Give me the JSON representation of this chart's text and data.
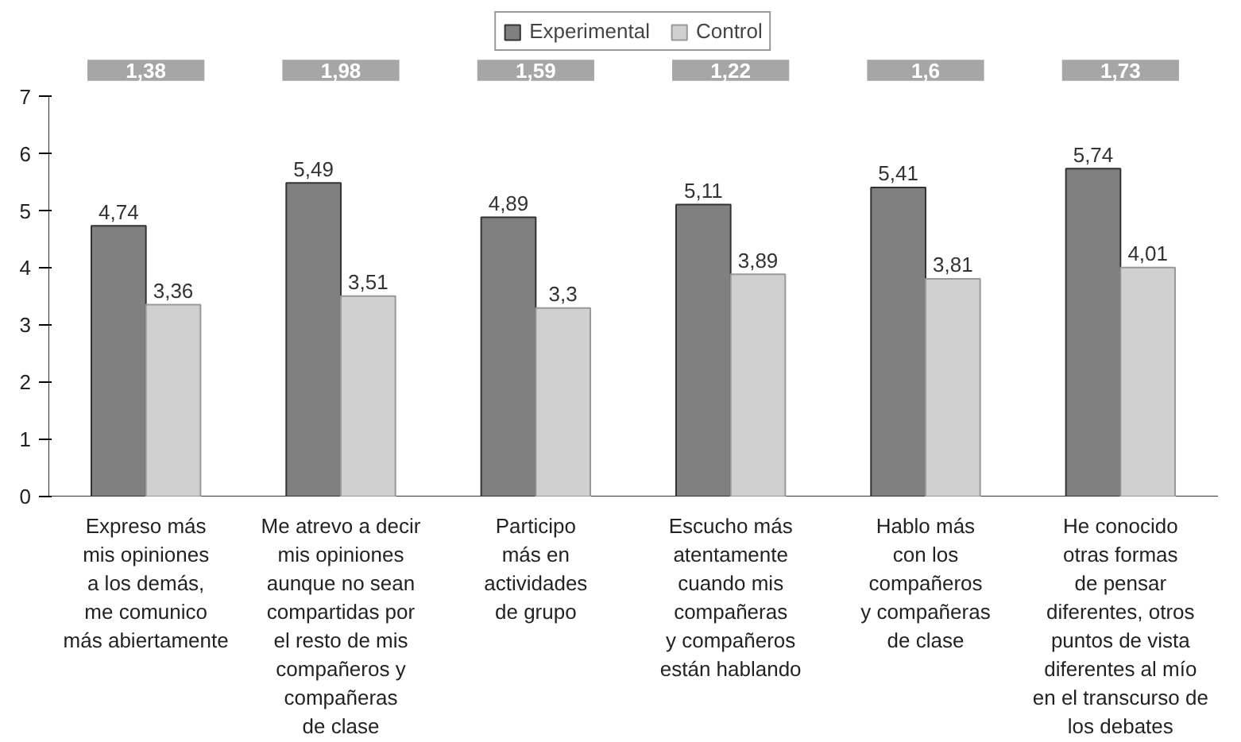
{
  "chart_data": {
    "type": "bar",
    "categories": [
      "Expreso más\nmis opiniones\na los demás,\nme comunico\nmás abiertamente",
      "Me atrevo a decir\nmis opiniones\naunque no sean\ncompartidas por\nel resto de mis\ncompañeros y\ncompañeras\nde clase",
      "Participo\nmás en\nactividades\nde grupo",
      "Escucho más\natentamente\ncuando mis\ncompañeras\ny compañeros\nestán hablando",
      "Hablo más\ncon los\ncompañeros\ny compañeras\nde clase",
      "He conocido\notras formas\nde pensar\ndiferentes, otros\npuntos de vista\ndiferentes al mío\nen el transcurso de\nlos debates"
    ],
    "series": [
      {
        "name": "Experimental",
        "color": "#808080",
        "values": [
          4.74,
          5.49,
          4.89,
          5.11,
          5.41,
          5.74
        ],
        "value_labels": [
          "4,74",
          "5,49",
          "4,89",
          "5,11",
          "5,41",
          "5,74"
        ]
      },
      {
        "name": "Control",
        "color": "#d0d0d0",
        "values": [
          3.36,
          3.51,
          3.3,
          3.89,
          3.81,
          4.01
        ],
        "value_labels": [
          "3,36",
          "3,51",
          "3,3",
          "3,89",
          "3,81",
          "4,01"
        ]
      }
    ],
    "annotations": [
      "1,38",
      "1,98",
      "1,59",
      "1,22",
      "1,6",
      "1,73"
    ],
    "ylim": [
      0,
      7
    ],
    "yticks": [
      0,
      1,
      2,
      3,
      4,
      5,
      6,
      7
    ],
    "grid": false,
    "legend": "top"
  }
}
